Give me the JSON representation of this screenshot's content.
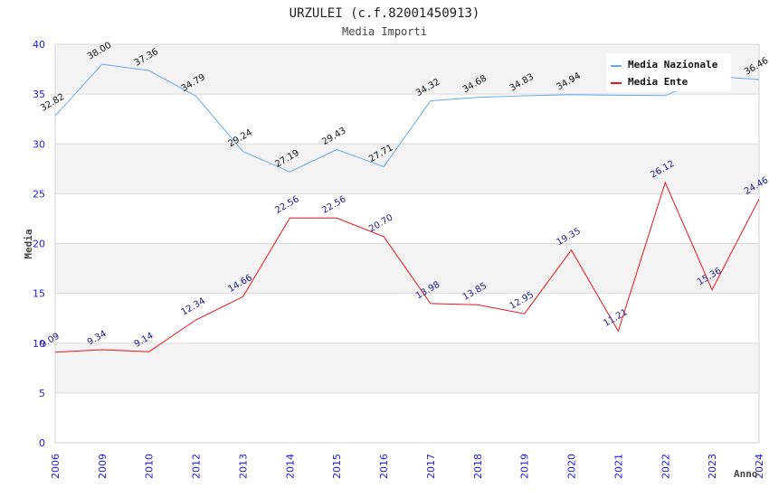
{
  "chart_data": {
    "type": "line",
    "title": "URZULEI (c.f.82001450913)",
    "subtitle": "Media Importi",
    "xlabel": "Anno",
    "ylabel": "Media",
    "ylim": [
      0,
      40
    ],
    "yticks": [
      "0",
      "5",
      "10",
      "15",
      "20",
      "25",
      "30",
      "35",
      "40"
    ],
    "grid": "horizontal, alternating bands",
    "legend_position": "top-right",
    "categories": [
      "2006",
      "2009",
      "2010",
      "2012",
      "2013",
      "2014",
      "2015",
      "2016",
      "2017",
      "2018",
      "2019",
      "2020",
      "2021",
      "2022",
      "2023",
      "2024"
    ],
    "series": [
      {
        "name": "Media Nazionale",
        "color": "#6aaae8",
        "label_color": "#111111",
        "values": [
          32.82,
          38.0,
          37.36,
          34.79,
          29.24,
          27.19,
          29.43,
          27.71,
          34.32,
          34.68,
          34.83,
          34.94,
          34.88,
          34.85,
          36.8,
          36.46
        ],
        "labels": [
          "32.82",
          "38.00",
          "37.36",
          "34.79",
          "29.24",
          "27.19",
          "29.43",
          "27.71",
          "34.32",
          "34.68",
          "34.83",
          "34.94",
          "",
          "",
          "",
          "36.46"
        ]
      },
      {
        "name": "Media Ente",
        "color": "#e8141a",
        "label_color": "#1a1a8a",
        "values": [
          9.09,
          9.34,
          9.14,
          12.34,
          14.66,
          22.56,
          22.56,
          20.7,
          13.98,
          13.85,
          12.95,
          19.35,
          11.21,
          26.12,
          15.36,
          24.46
        ],
        "labels": [
          "9.09",
          "9.34",
          "9.14",
          "12.34",
          "14.66",
          "22.56",
          "22.56",
          "20.70",
          "13.98",
          "13.85",
          "12.95",
          "19.35",
          "11.21",
          "26.12",
          "15.36",
          "24.46"
        ]
      }
    ]
  }
}
